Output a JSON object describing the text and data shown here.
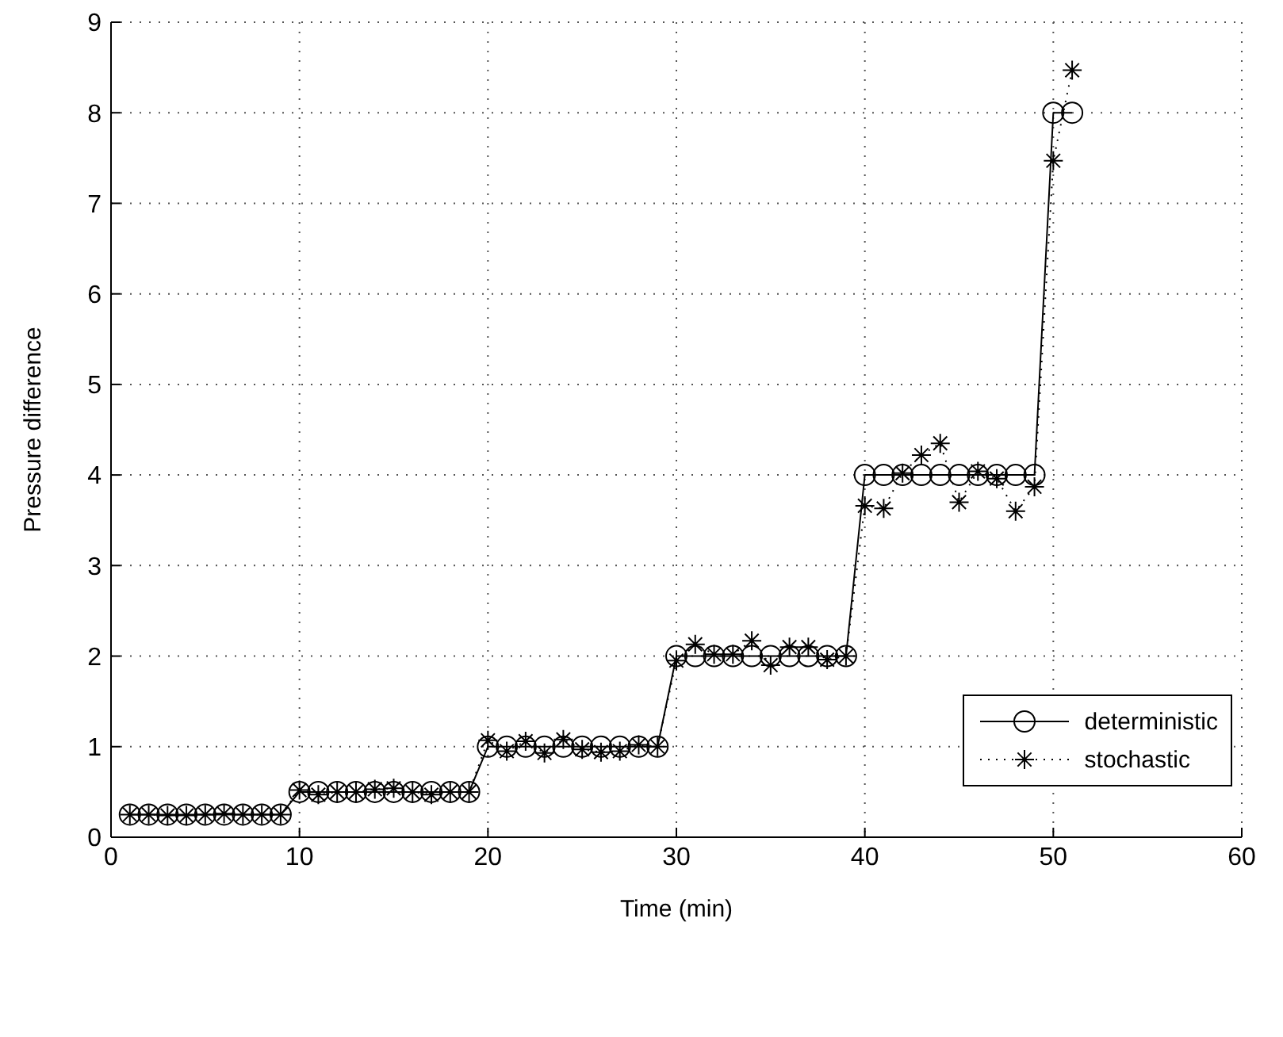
{
  "chart_data": {
    "type": "line",
    "xlabel": "Time (min)",
    "ylabel": "Pressure difference",
    "x": [
      1,
      2,
      3,
      4,
      5,
      6,
      7,
      8,
      9,
      10,
      11,
      12,
      13,
      14,
      15,
      16,
      17,
      18,
      19,
      20,
      21,
      22,
      23,
      24,
      25,
      26,
      27,
      28,
      29,
      30,
      31,
      32,
      33,
      34,
      35,
      36,
      37,
      38,
      39,
      40,
      41,
      42,
      43,
      44,
      45,
      46,
      47,
      48,
      49,
      50,
      51
    ],
    "series": [
      {
        "name": "deterministic",
        "color": "#000000",
        "marker": "circle",
        "line_style": "solid",
        "values": [
          0.25,
          0.25,
          0.25,
          0.25,
          0.25,
          0.25,
          0.25,
          0.25,
          0.25,
          0.5,
          0.5,
          0.5,
          0.5,
          0.5,
          0.5,
          0.5,
          0.5,
          0.5,
          0.5,
          1,
          1,
          1,
          1,
          1,
          1,
          1,
          1,
          1,
          1,
          2,
          2,
          2,
          2,
          2,
          2,
          2,
          2,
          2,
          2,
          4,
          4,
          4,
          4,
          4,
          4,
          4,
          4,
          4,
          4,
          8,
          8
        ]
      },
      {
        "name": "stochastic",
        "color": "#000000",
        "marker": "cross",
        "line_style": "dotted",
        "values": [
          0.25,
          0.25,
          0.24,
          0.24,
          0.25,
          0.26,
          0.25,
          0.25,
          0.25,
          0.52,
          0.47,
          0.5,
          0.5,
          0.53,
          0.54,
          0.5,
          0.47,
          0.5,
          0.5,
          1.07,
          0.95,
          1.06,
          0.93,
          1.08,
          0.97,
          0.94,
          0.95,
          1.02,
          1.0,
          1.95,
          2.13,
          2.02,
          2.02,
          2.17,
          1.9,
          2.1,
          2.1,
          1.96,
          2.0,
          3.66,
          3.63,
          4.02,
          4.22,
          4.35,
          3.7,
          4.04,
          3.96,
          3.6,
          3.87,
          7.47,
          8.47
        ]
      }
    ],
    "xlim": [
      0,
      60
    ],
    "xticks": [
      0,
      10,
      20,
      30,
      40,
      50,
      60
    ],
    "ylim": [
      0,
      9
    ],
    "yticks": [
      0,
      1,
      2,
      3,
      4,
      5,
      6,
      7,
      8,
      9
    ],
    "grid": true,
    "legend": "right"
  }
}
